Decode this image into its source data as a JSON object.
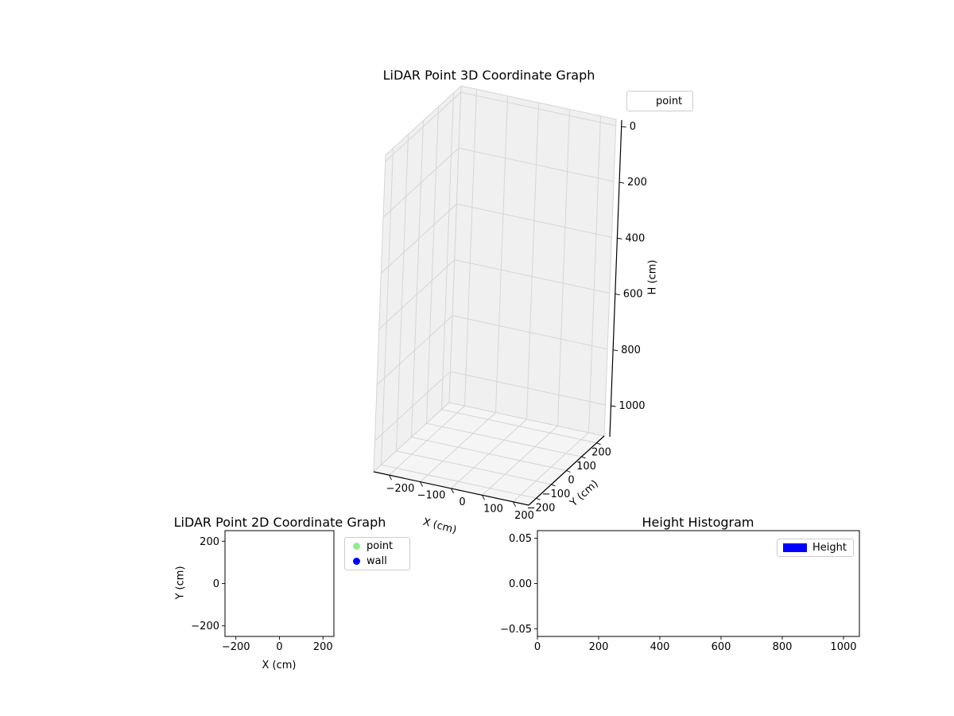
{
  "figure": {
    "bg": "#ffffff"
  },
  "style": {
    "grid_color": "#d5d5d5",
    "pane_color": "#f0f0f0",
    "floor_color": "#f5f5f5",
    "spine_color": "#000000",
    "tick_color": "#000000",
    "legend_border_color": "#cccccc",
    "text_color": "#000000"
  },
  "chart_data": [
    {
      "id": "lidar-3d",
      "type": "scatter3d",
      "title": "LiDAR Point 3D Coordinate Graph",
      "xlabel": "X (cm)",
      "ylabel": "Y (cm)",
      "zlabel": "H (cm)",
      "xlim": [
        -250,
        250
      ],
      "ylim": [
        -250,
        250
      ],
      "zlim": [
        0,
        1000
      ],
      "z_axis_inverted": true,
      "grid": true,
      "xticks": [
        {
          "v": -200,
          "label": "−200"
        },
        {
          "v": -100,
          "label": "−100"
        },
        {
          "v": 0,
          "label": "0"
        },
        {
          "v": 100,
          "label": "100"
        },
        {
          "v": 200,
          "label": "200"
        }
      ],
      "yticks": [
        {
          "v": -200,
          "label": "−200"
        },
        {
          "v": -100,
          "label": "−100"
        },
        {
          "v": 0,
          "label": "0"
        },
        {
          "v": 100,
          "label": "100"
        },
        {
          "v": 200,
          "label": "200"
        }
      ],
      "zticks": [
        {
          "v": 0,
          "label": "0"
        },
        {
          "v": 200,
          "label": "200"
        },
        {
          "v": 400,
          "label": "400"
        },
        {
          "v": 600,
          "label": "600"
        },
        {
          "v": 800,
          "label": "800"
        },
        {
          "v": 1000,
          "label": "1000"
        }
      ],
      "legend": {
        "position": "upper-right-outside",
        "entries": [
          {
            "label": "point",
            "marker": "none"
          }
        ]
      },
      "series": [
        {
          "name": "point",
          "points": []
        }
      ]
    },
    {
      "id": "lidar-2d",
      "type": "scatter",
      "title": "LiDAR Point 2D Coordinate Graph",
      "xlabel": "X (cm)",
      "ylabel": "Y (cm)",
      "xlim": [
        -250,
        250
      ],
      "ylim": [
        -250,
        250
      ],
      "grid": false,
      "xticks": [
        {
          "v": -200,
          "label": "−200"
        },
        {
          "v": 0,
          "label": "0"
        },
        {
          "v": 200,
          "label": "200"
        }
      ],
      "yticks": [
        {
          "v": 200,
          "label": "200"
        },
        {
          "v": 0,
          "label": "0"
        },
        {
          "v": -200,
          "label": "−200"
        }
      ],
      "legend": {
        "position": "outside-right",
        "entries": [
          {
            "label": "point",
            "marker": "circle",
            "color": "#90ee90"
          },
          {
            "label": "wall",
            "marker": "circle",
            "color": "#0000ff"
          }
        ]
      },
      "series": [
        {
          "name": "point",
          "points": []
        },
        {
          "name": "wall",
          "points": []
        }
      ]
    },
    {
      "id": "height-histogram",
      "type": "bar",
      "title": "Height Histogram",
      "xlabel": "",
      "ylabel": "",
      "xlim": [
        0,
        1052
      ],
      "ylim": [
        -0.0585,
        0.0585
      ],
      "grid": false,
      "xticks": [
        {
          "v": 0,
          "label": "0"
        },
        {
          "v": 200,
          "label": "200"
        },
        {
          "v": 400,
          "label": "400"
        },
        {
          "v": 600,
          "label": "600"
        },
        {
          "v": 800,
          "label": "800"
        },
        {
          "v": 1000,
          "label": "1000"
        }
      ],
      "yticks": [
        {
          "v": 0.05,
          "label": "0.05"
        },
        {
          "v": 0,
          "label": "0.00"
        },
        {
          "v": -0.05,
          "label": "−0.05"
        }
      ],
      "legend": {
        "position": "upper-right-inside",
        "entries": [
          {
            "label": "Height",
            "marker": "rect",
            "color": "#0000ff"
          }
        ]
      },
      "values": []
    }
  ]
}
